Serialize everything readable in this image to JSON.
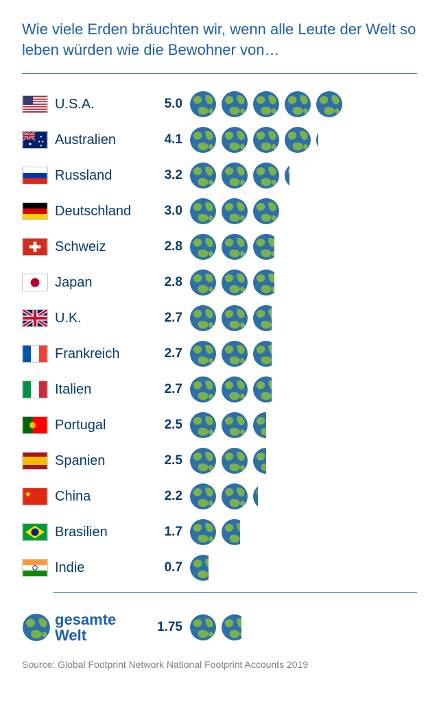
{
  "title": "Wie viele Erden bräuchten wir, wenn alle Leute der Welt so leben würden wie die Bewohner von…",
  "title_color": "#1e5fa6",
  "text_color": "#073b6b",
  "rule_color": "#1e5fa6",
  "earth_ocean": "#2e6fa8",
  "earth_land": "#7bb14c",
  "earth_size": 40,
  "earth_gap": 6,
  "flag_border": "#c8c8c8",
  "rows": [
    {
      "country": "U.S.A.",
      "value": "5.0",
      "earths": 5.0,
      "flag": "us"
    },
    {
      "country": "Australien",
      "value": "4.1",
      "earths": 4.1,
      "flag": "au"
    },
    {
      "country": "Russland",
      "value": "3.2",
      "earths": 3.2,
      "flag": "ru"
    },
    {
      "country": "Deutschland",
      "value": "3.0",
      "earths": 3.0,
      "flag": "de"
    },
    {
      "country": "Schweiz",
      "value": "2.8",
      "earths": 2.8,
      "flag": "ch"
    },
    {
      "country": "Japan",
      "value": "2.8",
      "earths": 2.8,
      "flag": "jp"
    },
    {
      "country": "U.K.",
      "value": "2.7",
      "earths": 2.7,
      "flag": "uk"
    },
    {
      "country": "Frankreich",
      "value": "2.7",
      "earths": 2.7,
      "flag": "fr"
    },
    {
      "country": "Italien",
      "value": "2.7",
      "earths": 2.7,
      "flag": "it"
    },
    {
      "country": "Portugal",
      "value": "2.5",
      "earths": 2.5,
      "flag": "pt"
    },
    {
      "country": "Spanien",
      "value": "2.5",
      "earths": 2.5,
      "flag": "es"
    },
    {
      "country": "China",
      "value": "2.2",
      "earths": 2.2,
      "flag": "cn"
    },
    {
      "country": "Brasilien",
      "value": "1.7",
      "earths": 1.7,
      "flag": "br"
    },
    {
      "country": "Indie",
      "value": "0.7",
      "earths": 0.7,
      "flag": "in"
    }
  ],
  "total": {
    "label_line1": "gesamte",
    "label_line2": "Welt",
    "value": "1.75",
    "earths": 1.75
  },
  "source": "Source: Global Footprint Network National Footprint Accounts 2019",
  "flags": {
    "us": {
      "type": "stripes13",
      "stripe1": "#b22234",
      "stripe2": "#ffffff",
      "canton": "#3c3b6e"
    },
    "au": {
      "type": "solid_canton",
      "bg": "#012169",
      "canton": "uk"
    },
    "ru": {
      "type": "tri_h",
      "c1": "#ffffff",
      "c2": "#0039a6",
      "c3": "#d52b1e"
    },
    "de": {
      "type": "tri_h",
      "c1": "#000000",
      "c2": "#dd0000",
      "c3": "#ffce00"
    },
    "ch": {
      "type": "swiss",
      "bg": "#d52b1e",
      "cross": "#ffffff"
    },
    "jp": {
      "type": "japan",
      "bg": "#ffffff",
      "disc": "#bc002d"
    },
    "uk": {
      "type": "uk"
    },
    "fr": {
      "type": "tri_v",
      "c1": "#0055a4",
      "c2": "#ffffff",
      "c3": "#ef4135"
    },
    "it": {
      "type": "tri_v",
      "c1": "#009246",
      "c2": "#ffffff",
      "c3": "#ce2b37"
    },
    "pt": {
      "type": "bi_v",
      "c1": "#006600",
      "c2": "#ff0000",
      "split": 0.4,
      "emblem": "#ffcc00"
    },
    "es": {
      "type": "spain",
      "c1": "#aa151b",
      "c2": "#f1bf00"
    },
    "cn": {
      "type": "solid_star",
      "bg": "#de2910",
      "star": "#ffde00"
    },
    "br": {
      "type": "brazil",
      "bg": "#009b3a",
      "diamond": "#fedf00",
      "disc": "#002776"
    },
    "in": {
      "type": "tri_h_disc",
      "c1": "#ff9933",
      "c2": "#ffffff",
      "c3": "#138808",
      "disc": "#000080"
    }
  }
}
